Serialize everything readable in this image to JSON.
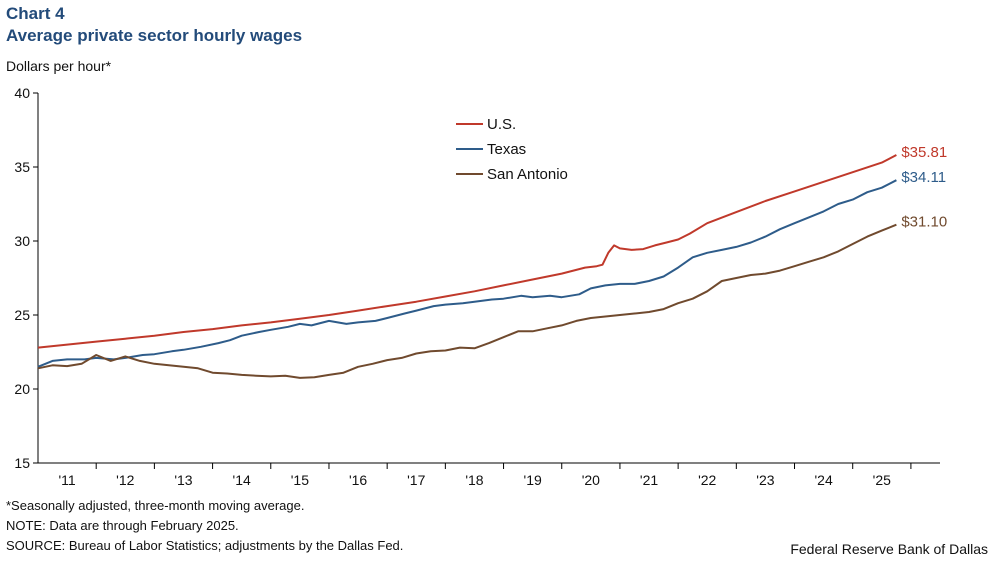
{
  "header": {
    "chart_number": "Chart 4",
    "title": "Average private sector hourly wages"
  },
  "footer": {
    "note1": "*Seasonally adjusted, three-month moving average.",
    "note2": "NOTE: Data are through February 2025.",
    "source": "SOURCE: Bureau of Labor Statistics; adjustments by the Dallas Fed.",
    "credit": "Federal Reserve Bank of Dallas"
  },
  "chart_data": {
    "type": "line",
    "title": "Average private sector hourly wages",
    "ylabel": "Dollars per hour*",
    "xlabel": "",
    "ylim": [
      15,
      40
    ],
    "yticks": [
      15,
      20,
      25,
      30,
      35,
      40
    ],
    "xlim": [
      2010.5,
      2026.0
    ],
    "xticks": [
      {
        "label": "'11",
        "x": 2011.0
      },
      {
        "label": "'12",
        "x": 2012.0
      },
      {
        "label": "'13",
        "x": 2013.0
      },
      {
        "label": "'14",
        "x": 2014.0
      },
      {
        "label": "'15",
        "x": 2015.0
      },
      {
        "label": "'16",
        "x": 2016.0
      },
      {
        "label": "'17",
        "x": 2017.0
      },
      {
        "label": "'18",
        "x": 2018.0
      },
      {
        "label": "'19",
        "x": 2019.0
      },
      {
        "label": "'20",
        "x": 2020.0
      },
      {
        "label": "'21",
        "x": 2021.0
      },
      {
        "label": "'22",
        "x": 2022.0
      },
      {
        "label": "'23",
        "x": 2023.0
      },
      {
        "label": "'24",
        "x": 2024.0
      },
      {
        "label": "'25",
        "x": 2025.0
      }
    ],
    "legend_position": "top-center",
    "series": [
      {
        "name": "U.S.",
        "color": "#c0392b",
        "end_label": "$35.81",
        "points": [
          [
            2010.5,
            22.8
          ],
          [
            2011.0,
            23.0
          ],
          [
            2011.5,
            23.2
          ],
          [
            2012.0,
            23.4
          ],
          [
            2012.5,
            23.6
          ],
          [
            2013.0,
            23.85
          ],
          [
            2013.5,
            24.05
          ],
          [
            2014.0,
            24.3
          ],
          [
            2014.5,
            24.5
          ],
          [
            2015.0,
            24.75
          ],
          [
            2015.5,
            25.0
          ],
          [
            2016.0,
            25.3
          ],
          [
            2016.5,
            25.6
          ],
          [
            2017.0,
            25.9
          ],
          [
            2017.5,
            26.25
          ],
          [
            2018.0,
            26.6
          ],
          [
            2018.5,
            27.0
          ],
          [
            2019.0,
            27.4
          ],
          [
            2019.5,
            27.8
          ],
          [
            2019.9,
            28.2
          ],
          [
            2020.1,
            28.3
          ],
          [
            2020.2,
            28.4
          ],
          [
            2020.3,
            29.2
          ],
          [
            2020.4,
            29.7
          ],
          [
            2020.5,
            29.5
          ],
          [
            2020.7,
            29.4
          ],
          [
            2020.9,
            29.45
          ],
          [
            2021.1,
            29.7
          ],
          [
            2021.3,
            29.9
          ],
          [
            2021.5,
            30.1
          ],
          [
            2021.7,
            30.5
          ],
          [
            2022.0,
            31.2
          ],
          [
            2022.5,
            31.95
          ],
          [
            2023.0,
            32.7
          ],
          [
            2023.5,
            33.35
          ],
          [
            2024.0,
            34.0
          ],
          [
            2024.5,
            34.65
          ],
          [
            2025.0,
            35.3
          ],
          [
            2025.25,
            35.81
          ]
        ]
      },
      {
        "name": "Texas",
        "color": "#2e5c8a",
        "end_label": "$34.11",
        "points": [
          [
            2010.5,
            21.5
          ],
          [
            2010.75,
            21.9
          ],
          [
            2011.0,
            22.0
          ],
          [
            2011.3,
            22.0
          ],
          [
            2011.5,
            22.1
          ],
          [
            2011.8,
            22.0
          ],
          [
            2012.0,
            22.1
          ],
          [
            2012.3,
            22.3
          ],
          [
            2012.5,
            22.35
          ],
          [
            2012.8,
            22.55
          ],
          [
            2013.0,
            22.65
          ],
          [
            2013.3,
            22.85
          ],
          [
            2013.6,
            23.1
          ],
          [
            2013.8,
            23.3
          ],
          [
            2014.0,
            23.6
          ],
          [
            2014.3,
            23.85
          ],
          [
            2014.5,
            24.0
          ],
          [
            2014.8,
            24.2
          ],
          [
            2015.0,
            24.4
          ],
          [
            2015.2,
            24.3
          ],
          [
            2015.5,
            24.6
          ],
          [
            2015.8,
            24.4
          ],
          [
            2016.0,
            24.5
          ],
          [
            2016.3,
            24.6
          ],
          [
            2016.5,
            24.8
          ],
          [
            2016.8,
            25.1
          ],
          [
            2017.0,
            25.3
          ],
          [
            2017.3,
            25.6
          ],
          [
            2017.5,
            25.7
          ],
          [
            2017.8,
            25.8
          ],
          [
            2018.0,
            25.9
          ],
          [
            2018.3,
            26.05
          ],
          [
            2018.5,
            26.1
          ],
          [
            2018.8,
            26.3
          ],
          [
            2019.0,
            26.2
          ],
          [
            2019.3,
            26.3
          ],
          [
            2019.5,
            26.2
          ],
          [
            2019.8,
            26.4
          ],
          [
            2020.0,
            26.8
          ],
          [
            2020.25,
            27.0
          ],
          [
            2020.5,
            27.1
          ],
          [
            2020.75,
            27.1
          ],
          [
            2021.0,
            27.3
          ],
          [
            2021.25,
            27.6
          ],
          [
            2021.5,
            28.2
          ],
          [
            2021.75,
            28.9
          ],
          [
            2022.0,
            29.2
          ],
          [
            2022.25,
            29.4
          ],
          [
            2022.5,
            29.6
          ],
          [
            2022.75,
            29.9
          ],
          [
            2023.0,
            30.3
          ],
          [
            2023.25,
            30.8
          ],
          [
            2023.5,
            31.2
          ],
          [
            2023.75,
            31.6
          ],
          [
            2024.0,
            32.0
          ],
          [
            2024.25,
            32.5
          ],
          [
            2024.5,
            32.8
          ],
          [
            2024.75,
            33.3
          ],
          [
            2025.0,
            33.6
          ],
          [
            2025.25,
            34.11
          ]
        ]
      },
      {
        "name": "San Antonio",
        "color": "#704a2e",
        "end_label": "$31.10",
        "points": [
          [
            2010.5,
            21.4
          ],
          [
            2010.75,
            21.6
          ],
          [
            2011.0,
            21.55
          ],
          [
            2011.25,
            21.7
          ],
          [
            2011.5,
            22.3
          ],
          [
            2011.75,
            21.9
          ],
          [
            2012.0,
            22.2
          ],
          [
            2012.25,
            21.9
          ],
          [
            2012.5,
            21.7
          ],
          [
            2012.75,
            21.6
          ],
          [
            2013.0,
            21.5
          ],
          [
            2013.25,
            21.4
          ],
          [
            2013.5,
            21.1
          ],
          [
            2013.75,
            21.05
          ],
          [
            2014.0,
            20.95
          ],
          [
            2014.25,
            20.9
          ],
          [
            2014.5,
            20.85
          ],
          [
            2014.75,
            20.9
          ],
          [
            2015.0,
            20.75
          ],
          [
            2015.25,
            20.8
          ],
          [
            2015.5,
            20.95
          ],
          [
            2015.75,
            21.1
          ],
          [
            2016.0,
            21.5
          ],
          [
            2016.25,
            21.7
          ],
          [
            2016.5,
            21.95
          ],
          [
            2016.75,
            22.1
          ],
          [
            2017.0,
            22.4
          ],
          [
            2017.25,
            22.55
          ],
          [
            2017.5,
            22.6
          ],
          [
            2017.75,
            22.8
          ],
          [
            2018.0,
            22.75
          ],
          [
            2018.25,
            23.1
          ],
          [
            2018.5,
            23.5
          ],
          [
            2018.75,
            23.9
          ],
          [
            2019.0,
            23.9
          ],
          [
            2019.25,
            24.1
          ],
          [
            2019.5,
            24.3
          ],
          [
            2019.75,
            24.6
          ],
          [
            2020.0,
            24.8
          ],
          [
            2020.25,
            24.9
          ],
          [
            2020.5,
            25.0
          ],
          [
            2020.75,
            25.1
          ],
          [
            2021.0,
            25.2
          ],
          [
            2021.25,
            25.4
          ],
          [
            2021.5,
            25.8
          ],
          [
            2021.75,
            26.1
          ],
          [
            2022.0,
            26.6
          ],
          [
            2022.25,
            27.3
          ],
          [
            2022.5,
            27.5
          ],
          [
            2022.75,
            27.7
          ],
          [
            2023.0,
            27.8
          ],
          [
            2023.25,
            28.0
          ],
          [
            2023.5,
            28.3
          ],
          [
            2023.75,
            28.6
          ],
          [
            2024.0,
            28.9
          ],
          [
            2024.25,
            29.3
          ],
          [
            2024.5,
            29.8
          ],
          [
            2024.75,
            30.3
          ],
          [
            2025.0,
            30.7
          ],
          [
            2025.25,
            31.1
          ]
        ]
      }
    ]
  }
}
